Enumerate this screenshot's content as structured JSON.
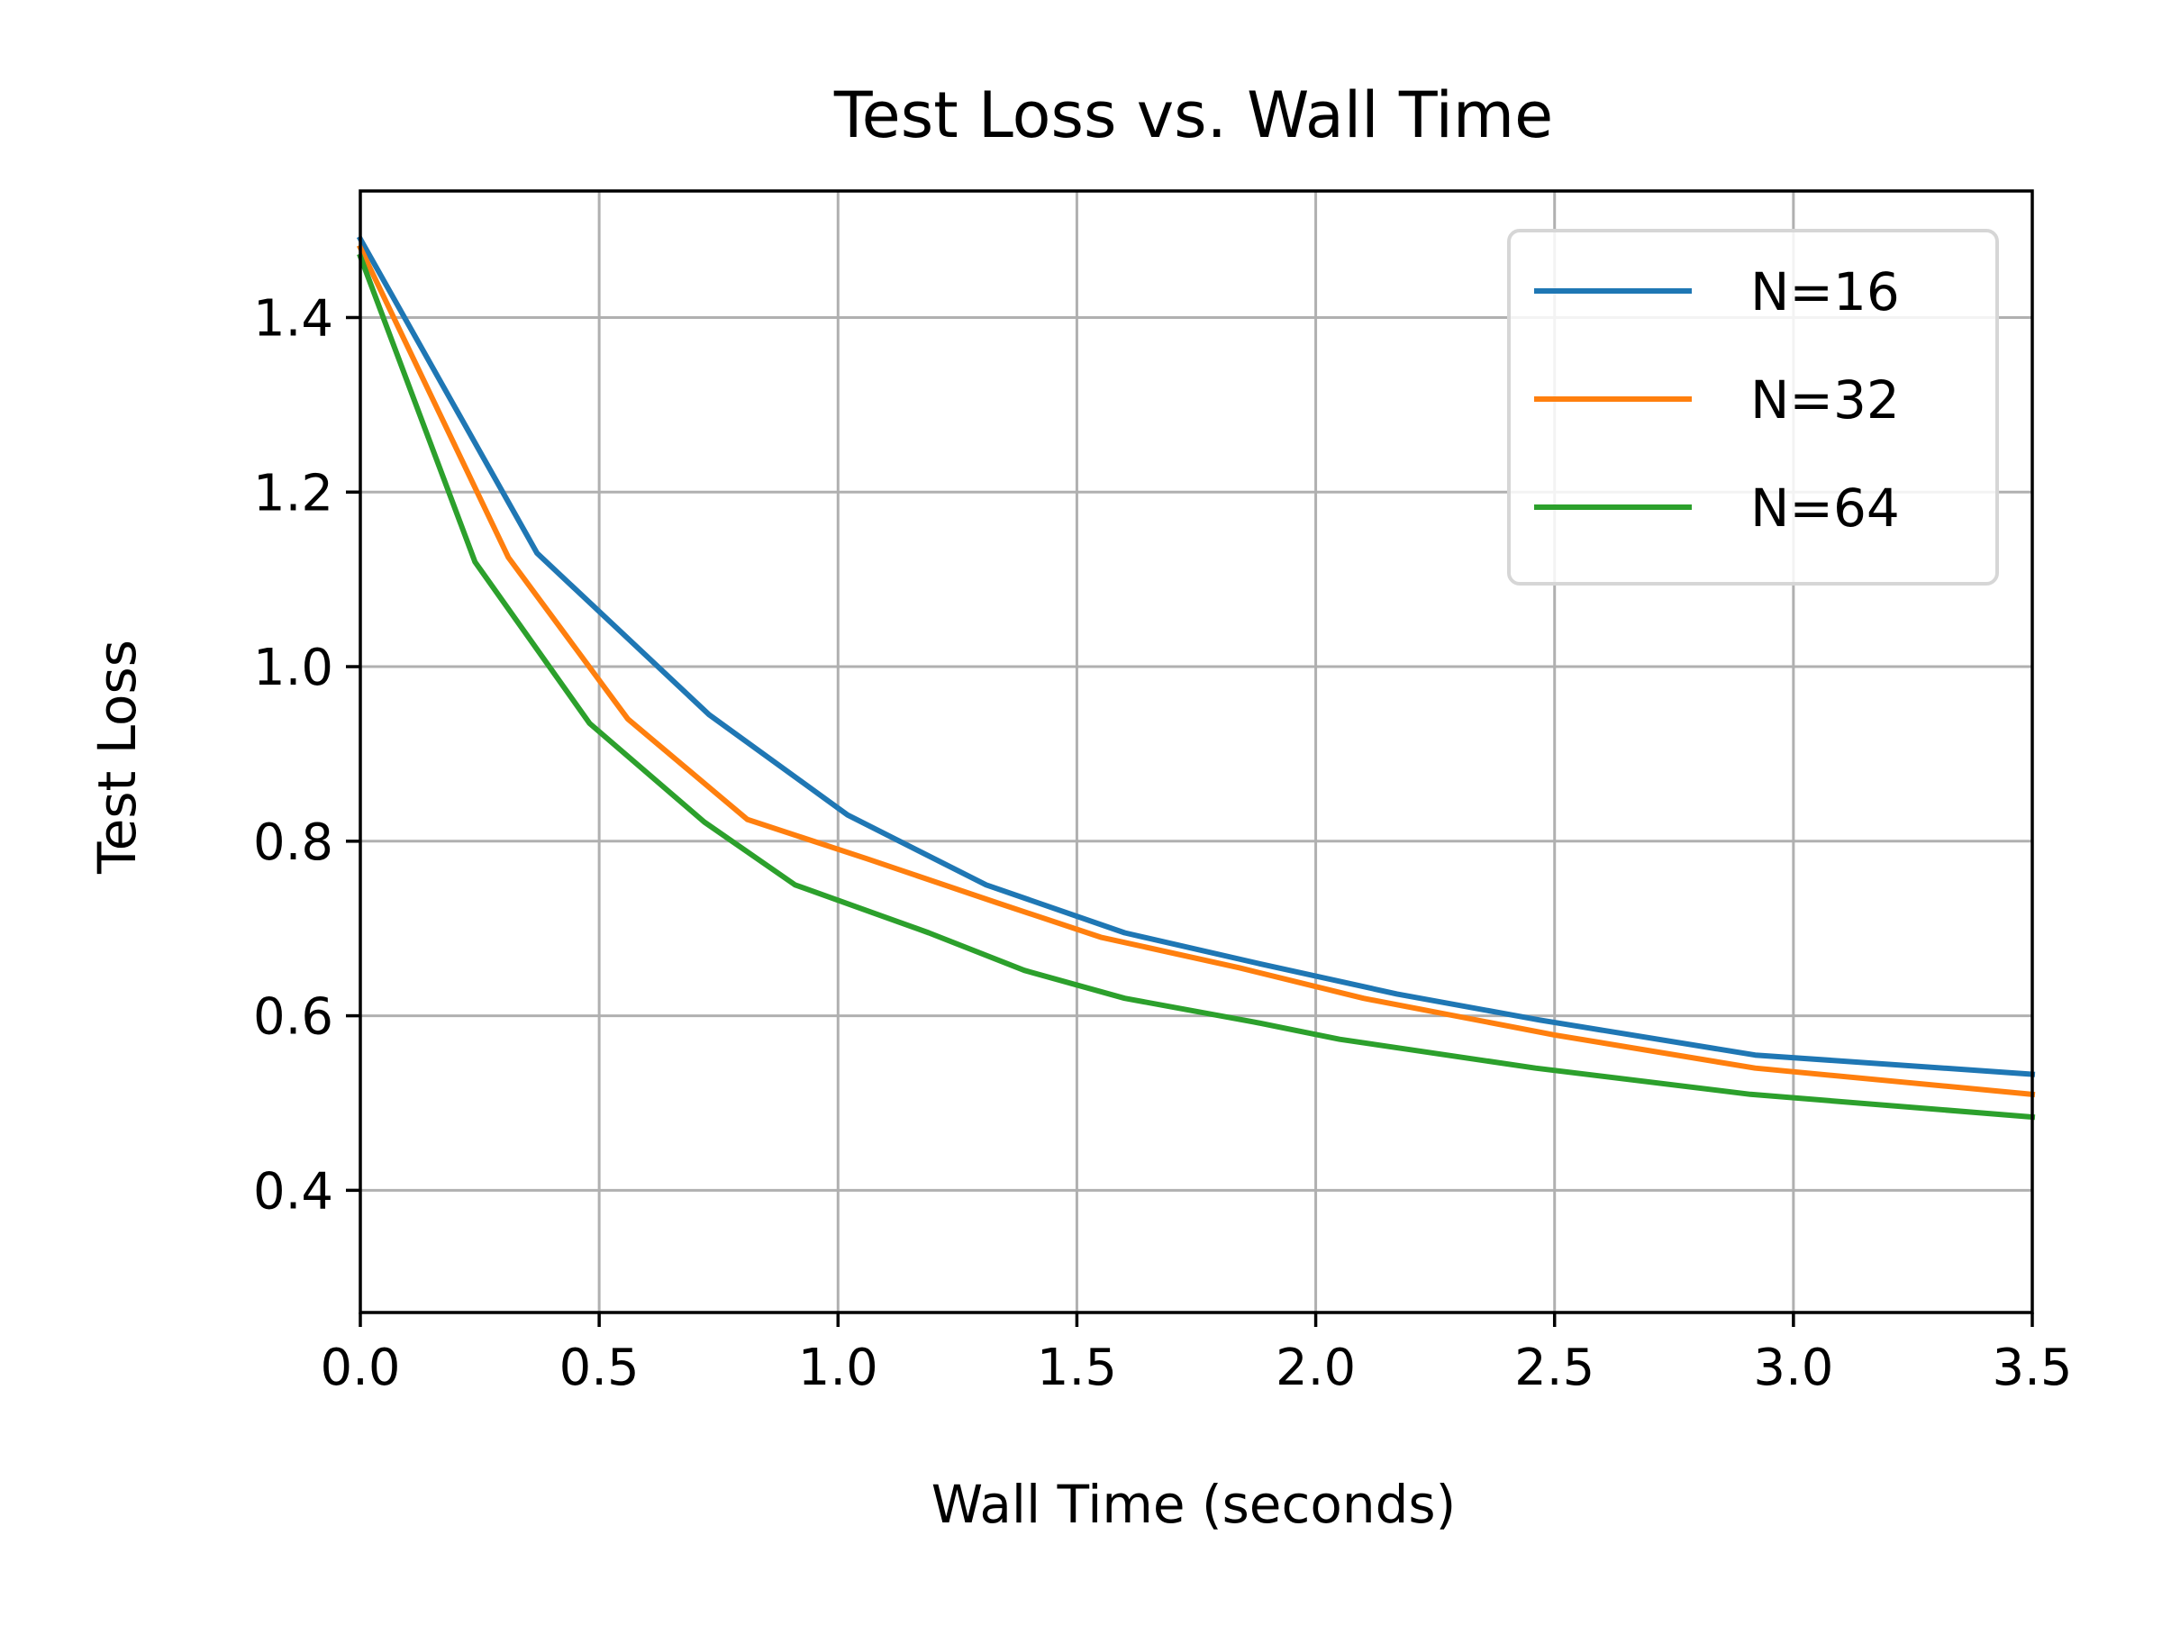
{
  "chart_data": {
    "type": "line",
    "title": "Test Loss vs. Wall Time",
    "xlabel": "Wall Time (seconds)",
    "ylabel": "Test Loss",
    "xlim": [
      0.0,
      3.5
    ],
    "ylim": [
      0.26,
      1.545
    ],
    "xticks": [
      0.0,
      0.5,
      1.0,
      1.5,
      2.0,
      2.5,
      3.0,
      3.5
    ],
    "xtick_labels": [
      "0.0",
      "0.5",
      "1.0",
      "1.5",
      "2.0",
      "2.5",
      "3.0",
      "3.5"
    ],
    "yticks": [
      0.4,
      0.6,
      0.8,
      1.0,
      1.2,
      1.4
    ],
    "ytick_labels": [
      "0.4",
      "0.6",
      "0.8",
      "1.0",
      "1.2",
      "1.4"
    ],
    "grid": true,
    "legend_position": "top-right",
    "series": [
      {
        "name": "N=16",
        "color": "#1f77b4",
        "x": [
          0.0,
          0.37,
          0.73,
          1.02,
          1.31,
          1.6,
          1.88,
          2.17,
          2.47,
          2.92,
          3.5
        ],
        "y": [
          1.49,
          1.13,
          0.945,
          0.83,
          0.75,
          0.695,
          0.66,
          0.625,
          0.595,
          0.555,
          0.533
        ]
      },
      {
        "name": "N=32",
        "color": "#ff7f0e",
        "x": [
          0.0,
          0.31,
          0.56,
          0.81,
          1.06,
          1.33,
          1.55,
          1.84,
          2.1,
          2.5,
          2.92,
          3.5
        ],
        "y": [
          1.48,
          1.125,
          0.94,
          0.825,
          0.78,
          0.73,
          0.69,
          0.655,
          0.62,
          0.578,
          0.54,
          0.51
        ]
      },
      {
        "name": "N=64",
        "color": "#2ca02c",
        "x": [
          0.0,
          0.24,
          0.48,
          0.72,
          0.91,
          1.19,
          1.39,
          1.6,
          1.87,
          2.05,
          2.46,
          2.91,
          3.5
        ],
        "y": [
          1.47,
          1.12,
          0.935,
          0.822,
          0.75,
          0.695,
          0.652,
          0.62,
          0.593,
          0.573,
          0.54,
          0.51,
          0.484
        ]
      }
    ]
  }
}
